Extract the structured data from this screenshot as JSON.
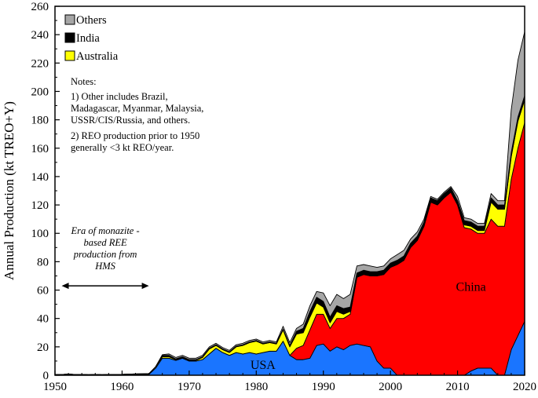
{
  "chart_data": {
    "type": "area",
    "stacked": true,
    "xlabel": "",
    "ylabel": "Annual Production (kt TREO+Y)",
    "xlim": [
      1950,
      2020
    ],
    "ylim": [
      0,
      260
    ],
    "xticks": [
      1950,
      1960,
      1970,
      1980,
      1990,
      2000,
      2010,
      2020
    ],
    "yticks": [
      0,
      20,
      40,
      60,
      80,
      100,
      120,
      140,
      160,
      180,
      200,
      220,
      240,
      260
    ],
    "grid": false,
    "legend": {
      "position": "top-left",
      "entries": [
        "Others",
        "India",
        "Australia"
      ]
    },
    "x": [
      1950,
      1951,
      1952,
      1953,
      1954,
      1955,
      1956,
      1957,
      1958,
      1959,
      1960,
      1961,
      1962,
      1963,
      1964,
      1965,
      1966,
      1967,
      1968,
      1969,
      1970,
      1971,
      1972,
      1973,
      1974,
      1975,
      1976,
      1977,
      1978,
      1979,
      1980,
      1981,
      1982,
      1983,
      1984,
      1985,
      1986,
      1987,
      1988,
      1989,
      1990,
      1991,
      1992,
      1993,
      1994,
      1995,
      1996,
      1997,
      1998,
      1999,
      2000,
      2001,
      2002,
      2003,
      2004,
      2005,
      2006,
      2007,
      2008,
      2009,
      2010,
      2011,
      2012,
      2013,
      2014,
      2015,
      2016,
      2017,
      2018,
      2019,
      2020
    ],
    "series": [
      {
        "name": "USA",
        "color": "#1a75ff",
        "values": [
          0.5,
          0.5,
          0.8,
          0.5,
          0.6,
          0.4,
          0.5,
          0.4,
          0.5,
          0.5,
          0.6,
          0.8,
          0.4,
          0.5,
          0.6,
          5,
          12,
          12,
          10.5,
          12,
          10,
          10,
          11,
          15,
          19,
          16,
          14,
          16,
          15,
          16,
          15,
          16,
          17,
          17,
          24,
          14,
          11,
          11,
          12,
          21,
          22,
          17,
          20,
          18,
          21,
          22,
          21,
          20,
          10,
          5,
          5,
          0,
          0,
          0,
          0,
          0,
          0,
          0,
          0,
          0,
          0,
          0,
          3,
          5,
          5,
          5,
          0,
          0,
          18,
          28,
          38
        ]
      },
      {
        "name": "China",
        "color": "#ff0000",
        "values": [
          0,
          0,
          0,
          0,
          0,
          0,
          0,
          0,
          0,
          0,
          0,
          0,
          0,
          0,
          0,
          0,
          0,
          0,
          0,
          0,
          0,
          0,
          0,
          0,
          0,
          0,
          0,
          0,
          0,
          0,
          0,
          0,
          0,
          0,
          0,
          0,
          8,
          10,
          20,
          22,
          21,
          16,
          20,
          22,
          22,
          47,
          50,
          50,
          60,
          66,
          71,
          78,
          81,
          90,
          95,
          105,
          122,
          120,
          125,
          129,
          120,
          104,
          100,
          95,
          95,
          105,
          105,
          105,
          120,
          132,
          140
        ]
      },
      {
        "name": "Australia",
        "color": "#ffff00",
        "values": [
          0,
          0,
          0,
          0,
          0,
          0,
          0,
          0,
          0,
          0,
          0,
          0,
          0.5,
          0.5,
          0.5,
          1,
          1,
          1,
          0.5,
          0.5,
          0.5,
          0.5,
          1.5,
          3.5,
          2,
          2,
          2,
          4,
          6,
          7,
          9,
          6,
          6,
          5,
          8,
          6,
          10,
          9,
          9,
          8,
          5,
          4,
          5,
          3,
          2,
          0,
          0,
          0,
          0,
          0,
          0,
          0,
          0,
          0,
          0,
          0,
          0,
          0,
          0,
          0,
          0,
          2,
          2,
          2,
          2,
          12,
          12,
          12,
          16,
          19,
          16
        ]
      },
      {
        "name": "India",
        "color": "#000000",
        "values": [
          0,
          0,
          0,
          0,
          0,
          0,
          0,
          0,
          0,
          0,
          0,
          0,
          0,
          0,
          0,
          0,
          1,
          1,
          0.5,
          0.5,
          0.5,
          0.5,
          0.5,
          0.5,
          0.5,
          0.5,
          0.5,
          0.5,
          0.5,
          0.5,
          0.5,
          0.5,
          0.5,
          0.5,
          0.5,
          1,
          2,
          3,
          4,
          4,
          4,
          4,
          4,
          4,
          3,
          3,
          3,
          3,
          3,
          3,
          3,
          3,
          3,
          3,
          3,
          3,
          3,
          3,
          3,
          3,
          3,
          3,
          3,
          3,
          3,
          3,
          3,
          3,
          3,
          3,
          3
        ]
      },
      {
        "name": "Others",
        "color": "#a6a6a6",
        "values": [
          0,
          0,
          0,
          0,
          0,
          0,
          0,
          0,
          0,
          0,
          0,
          0,
          0,
          0,
          0,
          0,
          0.5,
          1,
          1,
          1,
          1,
          1,
          1,
          1,
          1,
          1,
          1,
          1,
          1,
          1,
          1,
          1,
          1,
          1,
          2,
          2,
          2,
          3,
          4,
          4,
          6,
          8,
          8,
          7,
          9,
          5,
          4,
          4,
          3,
          3,
          3,
          4,
          4,
          3,
          3,
          2,
          1,
          1,
          1,
          1,
          3,
          2,
          2,
          2,
          2,
          3,
          3,
          3,
          30,
          40,
          45
        ]
      }
    ],
    "labels": {
      "usa": "USA",
      "china": "China"
    },
    "notes": [
      "Notes:",
      "1) Other includes Brazil,",
      "Madagascar, Myanmar, Malaysia,",
      "USSR/CIS/Russia, and others.",
      "2) REO production prior to 1950",
      "generally <3 kt REO/year."
    ],
    "era_annotation": {
      "lines": [
        "Era of monazite -",
        "based REE",
        "production from",
        "HMS"
      ],
      "x_start": 1951,
      "x_end": 1964
    }
  }
}
